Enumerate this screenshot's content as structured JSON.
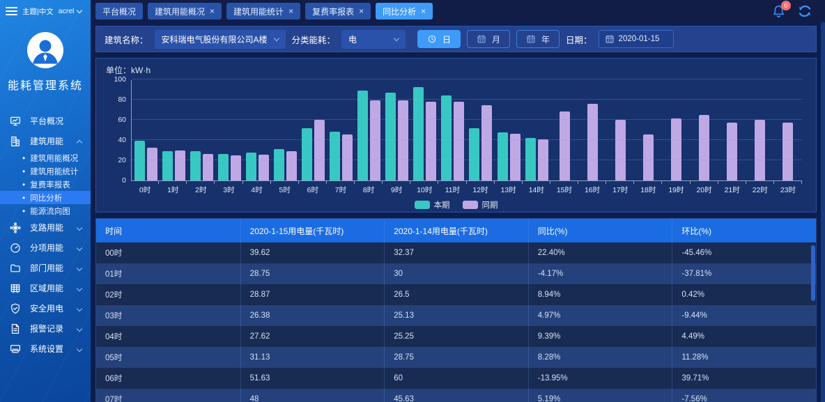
{
  "header": {
    "theme_label": "主题|中文",
    "user": "acrel",
    "bell_badge": "0"
  },
  "sidebar": {
    "app_title": "能耗管理系统",
    "items": [
      {
        "label": "平台概况",
        "icon": "dashboard-icon",
        "chevron": null
      },
      {
        "label": "建筑用能",
        "icon": "building-icon",
        "chevron": "up",
        "children": [
          {
            "label": "建筑用能概况",
            "active": false
          },
          {
            "label": "建筑用能统计",
            "active": false
          },
          {
            "label": "复费率报表",
            "active": false
          },
          {
            "label": "同比分析",
            "active": true
          },
          {
            "label": "能源流向图",
            "active": false
          }
        ]
      },
      {
        "label": "支路用能",
        "icon": "circuit-icon",
        "chevron": "down"
      },
      {
        "label": "分项用能",
        "icon": "meter-icon",
        "chevron": "down"
      },
      {
        "label": "部门用能",
        "icon": "folder-icon",
        "chevron": "down"
      },
      {
        "label": "区域用能",
        "icon": "area-icon",
        "chevron": "down"
      },
      {
        "label": "安全用电",
        "icon": "shield-icon",
        "chevron": "down"
      },
      {
        "label": "报警记录",
        "icon": "report-icon",
        "chevron": "down"
      },
      {
        "label": "系统设置",
        "icon": "settings-icon",
        "chevron": "down"
      }
    ]
  },
  "tabs": [
    {
      "label": "平台概况",
      "closable": false,
      "active": false
    },
    {
      "label": "建筑用能概况",
      "closable": true,
      "active": false
    },
    {
      "label": "建筑用能统计",
      "closable": true,
      "active": false
    },
    {
      "label": "复费率报表",
      "closable": true,
      "active": false
    },
    {
      "label": "同比分析",
      "closable": true,
      "active": true
    }
  ],
  "filters": {
    "building_label": "建筑名称：",
    "building_value": "安科瑞电气股份有限公司A楼",
    "energy_label": "分类能耗：",
    "energy_value": "电",
    "period_buttons": [
      {
        "label": "日",
        "icon": "clock-icon",
        "active": true
      },
      {
        "label": "月",
        "icon": "calendar-icon",
        "active": false
      },
      {
        "label": "年",
        "icon": "calendar-icon",
        "active": false
      }
    ],
    "date_label": "日期：",
    "date_value": "2020-01-15"
  },
  "chart_data": {
    "type": "bar",
    "unit_label": "单位：kW·h",
    "categories": [
      "0时",
      "1时",
      "2时",
      "3时",
      "4时",
      "5时",
      "6时",
      "7时",
      "8时",
      "9时",
      "10时",
      "11时",
      "12时",
      "13时",
      "14时",
      "15时",
      "16时",
      "17时",
      "18时",
      "19时",
      "20时",
      "21时",
      "22时",
      "23时"
    ],
    "series": [
      {
        "name": "本期",
        "color": "#38c8c3",
        "values": [
          39.62,
          28.75,
          28.87,
          26.38,
          27.62,
          31.13,
          51.63,
          48,
          88.8,
          86.9,
          92.3,
          84.4,
          51.9,
          47.9,
          41.9,
          null,
          null,
          null,
          null,
          null,
          null,
          null,
          null,
          null
        ]
      },
      {
        "name": "同期",
        "color": "#bfa8e6",
        "values": [
          32.37,
          30,
          26.5,
          25.13,
          25.25,
          28.75,
          60,
          45.63,
          79.2,
          79.2,
          77.8,
          77.9,
          74.5,
          45.9,
          40.9,
          68.2,
          75.6,
          60.2,
          45.8,
          61.3,
          64.5,
          57.4,
          60.2,
          57.4
        ]
      }
    ],
    "ylim": [
      0,
      100
    ],
    "yticks": [
      0,
      20,
      40,
      60,
      80,
      100
    ],
    "grid": true,
    "legend_position": "bottom"
  },
  "table": {
    "columns": [
      "时间",
      "2020-1-15用电量(千瓦时)",
      "2020-1-14用电量(千瓦时)",
      "同比(%)",
      "环比(%)"
    ],
    "rows": [
      [
        "00时",
        "39.62",
        "32.37",
        "22.40%",
        "-45.46%"
      ],
      [
        "01时",
        "28.75",
        "30",
        "-4.17%",
        "-37.81%"
      ],
      [
        "02时",
        "28.87",
        "26.5",
        "8.94%",
        "0.42%"
      ],
      [
        "03时",
        "26.38",
        "25.13",
        "4.97%",
        "-9.44%"
      ],
      [
        "04时",
        "27.62",
        "25.25",
        "9.39%",
        "4.49%"
      ],
      [
        "05时",
        "31.13",
        "28.75",
        "8.28%",
        "11.28%"
      ],
      [
        "06时",
        "51.63",
        "60",
        "-13.95%",
        "39.71%"
      ],
      [
        "07时",
        "48",
        "45.63",
        "5.19%",
        "-7.56%"
      ]
    ]
  },
  "colors": {
    "accent": "#3e9bf8",
    "series_current": "#38c8c3",
    "series_previous": "#bfa8e6",
    "table_header": "#1b6ce2",
    "badge_red": "#f56c6c"
  }
}
